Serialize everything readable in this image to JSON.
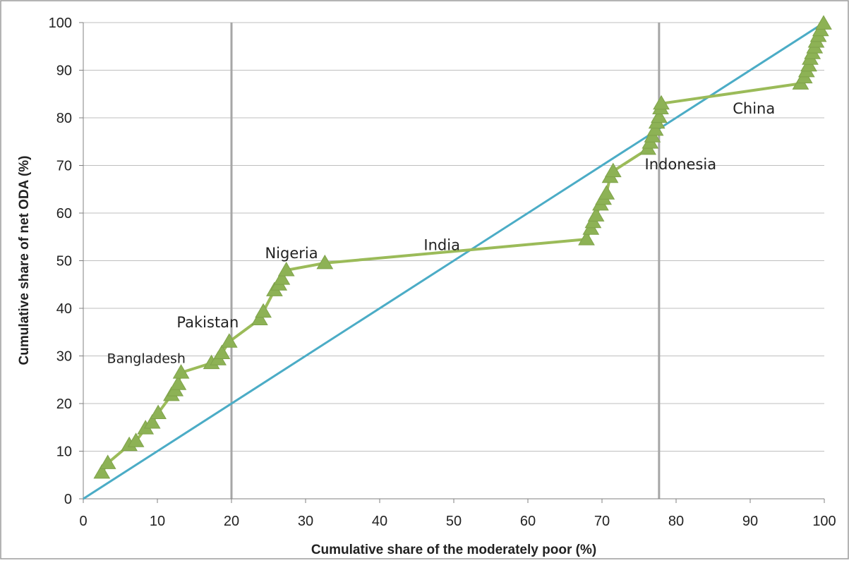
{
  "chart_data": {
    "type": "line",
    "title": "",
    "xlabel": "Cumulative share of the moderately poor (%)",
    "ylabel": "Cumulative share of  net ODA (%)",
    "xlim": [
      0,
      100
    ],
    "ylim": [
      0,
      100
    ],
    "x_ticks": [
      "0",
      "10",
      "20",
      "30",
      "40",
      "50",
      "60",
      "70",
      "80",
      "90",
      "100"
    ],
    "y_ticks": [
      "0",
      "10",
      "20",
      "30",
      "40",
      "50",
      "60",
      "70",
      "80",
      "90",
      "100"
    ],
    "grid": "horizontal",
    "reference_lines_x": [
      20,
      77.7
    ],
    "colors": {
      "series": "#9BBB59",
      "marker": "#8DB255",
      "equality_line": "#4BACC6",
      "reference_line": "#A6A6A6",
      "grid": "#BFBFBF",
      "axis": "#808080"
    },
    "series": [
      {
        "marker": "triangle",
        "points": [
          [
            2.5,
            5.5
          ],
          [
            3.3,
            7.5
          ],
          [
            6.2,
            11.3
          ],
          [
            7.1,
            12.1
          ],
          [
            8.4,
            14.8
          ],
          [
            9.3,
            16.0
          ],
          [
            10.1,
            18.0
          ],
          [
            11.9,
            21.8
          ],
          [
            12.4,
            22.8
          ],
          [
            12.8,
            24.1
          ],
          [
            13.2,
            26.5
          ],
          [
            17.3,
            28.5
          ],
          [
            18.2,
            29.3
          ],
          [
            18.7,
            30.6
          ],
          [
            19.7,
            33.0
          ],
          [
            23.8,
            37.7
          ],
          [
            24.3,
            39.3
          ],
          [
            25.8,
            43.8
          ],
          [
            26.4,
            45.0
          ],
          [
            26.8,
            46.2
          ],
          [
            27.4,
            48.0
          ],
          [
            32.6,
            49.5
          ],
          [
            67.9,
            54.5
          ],
          [
            68.5,
            56.7
          ],
          [
            68.8,
            58.1
          ],
          [
            69.2,
            59.5
          ],
          [
            69.8,
            61.8
          ],
          [
            70.2,
            63.0
          ],
          [
            70.6,
            64.1
          ],
          [
            71.1,
            67.6
          ],
          [
            71.5,
            68.8
          ],
          [
            76.2,
            73.5
          ],
          [
            76.5,
            74.8
          ],
          [
            76.8,
            76.1
          ],
          [
            77.2,
            77.5
          ],
          [
            77.4,
            79.0
          ],
          [
            77.7,
            80.2
          ],
          [
            77.9,
            82.0
          ],
          [
            78.0,
            83.0
          ],
          [
            96.8,
            87.2
          ],
          [
            97.3,
            88.5
          ],
          [
            97.6,
            89.8
          ],
          [
            97.9,
            91.0
          ],
          [
            98.1,
            92.4
          ],
          [
            98.4,
            93.6
          ],
          [
            98.7,
            94.8
          ],
          [
            98.9,
            96.0
          ],
          [
            99.2,
            97.2
          ],
          [
            99.5,
            98.4
          ],
          [
            99.9,
            99.8
          ]
        ]
      },
      {
        "points": [
          [
            0,
            0
          ],
          [
            100,
            100
          ]
        ]
      }
    ],
    "annotations": [
      {
        "text": "Bangladesh",
        "x": 8.5,
        "y": 28.5,
        "size": "small"
      },
      {
        "text": "Pakistan",
        "x": 16.8,
        "y": 36.0,
        "size": "normal"
      },
      {
        "text": "Nigeria",
        "x": 28.1,
        "y": 50.5,
        "size": "normal"
      },
      {
        "text": "India",
        "x": 48.4,
        "y": 52.2,
        "size": "normal"
      },
      {
        "text": "Indonesia",
        "x": 80.6,
        "y": 69.2,
        "size": "normal"
      },
      {
        "text": "China",
        "x": 90.5,
        "y": 80.9,
        "size": "normal"
      }
    ]
  }
}
